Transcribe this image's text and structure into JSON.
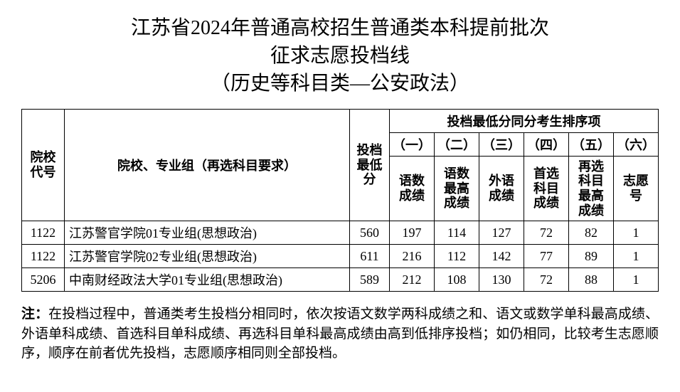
{
  "title": {
    "line1": "江苏省2024年普通高校招生普通类本科提前批次",
    "line2": "征求志愿投档线",
    "line3": "（历史等科目类—公安政法）"
  },
  "table": {
    "headers": {
      "code_l1": "院校",
      "code_l2": "代号",
      "name": "院校、专业组（再选科目要求）",
      "score_l1": "投档",
      "score_l2": "最低分",
      "group_header": "投档最低分同分考生排序项",
      "nums": [
        "（一）",
        "（二）",
        "（三）",
        "（四）",
        "（五）",
        "（六）"
      ],
      "sub1_l1": "语数",
      "sub1_l2": "成绩",
      "sub2_l1": "语数",
      "sub2_l2": "最高",
      "sub2_l3": "成绩",
      "sub3_l1": "外语",
      "sub3_l2": "成绩",
      "sub4_l1": "首选",
      "sub4_l2": "科目",
      "sub4_l3": "成绩",
      "sub5_l1": "再选",
      "sub5_l2": "科目",
      "sub5_l3": "最高",
      "sub5_l4": "成绩",
      "sub6_l1": "志愿",
      "sub6_l2": "号"
    },
    "rows": [
      {
        "code": "1122",
        "name": "江苏警官学院01专业组(思想政治)",
        "score": "560",
        "s1": "197",
        "s2": "114",
        "s3": "127",
        "s4": "72",
        "s5": "82",
        "s6": "1"
      },
      {
        "code": "1122",
        "name": "江苏警官学院02专业组(思想政治)",
        "score": "611",
        "s1": "216",
        "s2": "112",
        "s3": "142",
        "s4": "77",
        "s5": "89",
        "s6": "1"
      },
      {
        "code": "5206",
        "name": "中南财经政法大学01专业组(思想政治)",
        "score": "589",
        "s1": "212",
        "s2": "108",
        "s3": "130",
        "s4": "72",
        "s5": "88",
        "s6": "1"
      }
    ]
  },
  "note": {
    "label": "注：",
    "text": "在投档过程中，普通类考生投档分相同时，依次按语文数学两科成绩之和、语文或数学单科最高成绩、外语单科成绩、首选科目单科成绩、再选科目单科最高成绩由高到低排序投档；如仍相同，比较考生志愿顺序，顺序在前者优先投档，志愿顺序相同则全部投档。"
  },
  "style": {
    "title_fontsize": 28,
    "table_fontsize": 18,
    "note_fontsize": 19,
    "border_color": "#000000",
    "background": "#ffffff",
    "text_color": "#000000"
  }
}
